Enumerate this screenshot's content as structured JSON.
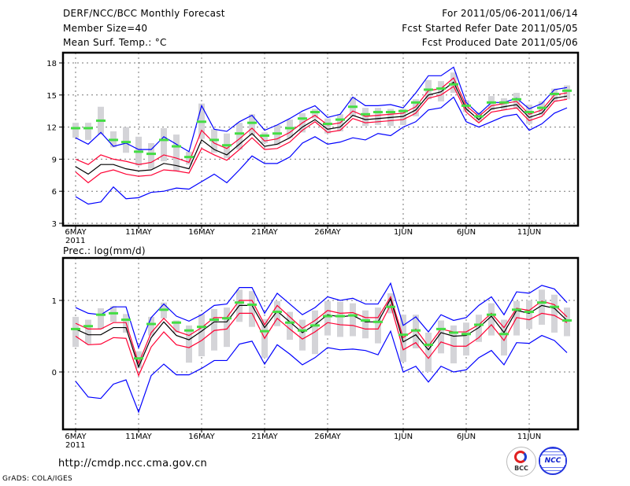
{
  "header": {
    "title": "DERF/NCC/BCC Monthly Forecast",
    "member_size": "Member Size=40",
    "period": "For 2011/05/06-2011/06/14",
    "started": "Fcst Started Refer Date 2011/05/05",
    "produced": "Fcst Produced Date 2011/05/06"
  },
  "footer": {
    "url": "http://cmdp.ncc.cma.gov.cn",
    "credit": "GrADS: COLA/IGES",
    "logo_bcc": "BCC",
    "logo_ncc": "NCC"
  },
  "colors": {
    "max_min": "#0000ff",
    "spread": "#ff0033",
    "mean": "#000000",
    "marker": "#44dd44",
    "bar": "#d4d4d8"
  },
  "chart_data": [
    {
      "type": "line",
      "title": "Mean Surf. Temp.: °C",
      "ylabel": "°C",
      "ylim": [
        3,
        19
      ],
      "yticks": [
        "3",
        "6",
        "9",
        "12",
        "15",
        "18"
      ],
      "ytick_values": [
        3,
        6,
        9,
        12,
        15,
        18
      ],
      "xticks": [
        {
          "day": 0,
          "label": "6MAY"
        },
        {
          "day": 5,
          "label": "11MAY"
        },
        {
          "day": 10,
          "label": "16MAY"
        },
        {
          "day": 15,
          "label": "21MAY"
        },
        {
          "day": 20,
          "label": "26MAY"
        },
        {
          "day": 26,
          "label": "1JUN"
        },
        {
          "day": 31,
          "label": "6JUN"
        },
        {
          "day": 36,
          "label": "11JUN"
        }
      ],
      "year_label": "2011",
      "grid": true,
      "days": 40,
      "series": [
        {
          "name": "max",
          "color": "#0000ff",
          "values": [
            11.0,
            10.4,
            11.5,
            10.2,
            10.5,
            9.9,
            9.9,
            11.1,
            10.4,
            9.7,
            14.0,
            11.8,
            11.6,
            12.5,
            13.1,
            11.7,
            12.2,
            12.8,
            13.5,
            14.0,
            12.9,
            13.2,
            14.8,
            14.0,
            14.0,
            14.1,
            13.8,
            15.2,
            16.8,
            16.8,
            17.6,
            14.3,
            13.2,
            14.3,
            14.3,
            14.7,
            13.7,
            14.2,
            15.5,
            15.7
          ]
        },
        {
          "name": "min",
          "color": "#0000ff",
          "values": [
            5.5,
            4.8,
            5.0,
            6.4,
            5.3,
            5.4,
            5.9,
            6.0,
            6.3,
            6.2,
            6.9,
            7.6,
            6.8,
            8.0,
            9.3,
            8.6,
            8.6,
            9.2,
            10.5,
            11.1,
            10.4,
            10.6,
            11.0,
            10.8,
            11.4,
            11.2,
            12.0,
            12.5,
            13.6,
            13.8,
            14.8,
            12.5,
            12.0,
            12.5,
            13.0,
            13.2,
            11.7,
            12.3,
            13.3,
            13.8
          ]
        },
        {
          "name": "upper",
          "color": "#ff0033",
          "values": [
            9.0,
            8.5,
            9.4,
            9.0,
            8.8,
            8.5,
            8.7,
            9.4,
            9.1,
            8.7,
            11.7,
            10.5,
            10.0,
            10.9,
            11.9,
            10.7,
            10.9,
            11.5,
            12.4,
            13.1,
            12.2,
            12.4,
            13.5,
            13.0,
            13.1,
            13.2,
            13.3,
            13.9,
            15.4,
            15.6,
            16.6,
            14.0,
            13.0,
            14.0,
            14.2,
            14.4,
            13.2,
            13.6,
            15.0,
            15.2
          ]
        },
        {
          "name": "lower",
          "color": "#ff0033",
          "values": [
            7.8,
            6.8,
            7.7,
            8.0,
            7.6,
            7.4,
            7.5,
            8.0,
            7.9,
            7.7,
            10.0,
            9.4,
            8.9,
            9.9,
            11.0,
            9.9,
            10.0,
            10.6,
            11.7,
            12.5,
            11.5,
            11.7,
            12.8,
            12.4,
            12.5,
            12.6,
            12.7,
            13.3,
            14.7,
            15.0,
            15.8,
            13.4,
            12.4,
            13.4,
            13.6,
            13.8,
            12.6,
            13.0,
            14.4,
            14.6
          ]
        },
        {
          "name": "mean",
          "color": "#000000",
          "values": [
            8.3,
            7.6,
            8.5,
            8.5,
            8.1,
            7.9,
            8.0,
            8.6,
            8.4,
            8.1,
            10.8,
            9.9,
            9.4,
            10.4,
            11.4,
            10.2,
            10.4,
            11.0,
            12.0,
            12.7,
            11.8,
            12.0,
            13.1,
            12.7,
            12.8,
            12.9,
            13.0,
            13.6,
            15.0,
            15.3,
            16.2,
            13.7,
            12.7,
            13.7,
            13.9,
            14.1,
            12.9,
            13.3,
            14.7,
            14.9
          ]
        }
      ],
      "markers": [
        11.9,
        11.9,
        12.6,
        10.8,
        10.6,
        9.7,
        9.5,
        10.8,
        10.2,
        9.2,
        12.5,
        10.8,
        10.3,
        11.4,
        12.4,
        11.2,
        11.4,
        11.9,
        12.8,
        13.4,
        12.3,
        12.7,
        13.9,
        13.2,
        13.4,
        13.4,
        13.5,
        14.3,
        15.5,
        15.6,
        16.0,
        14.0,
        13.0,
        14.3,
        14.3,
        14.6,
        13.4,
        13.8,
        15.1,
        15.4
      ],
      "bar_high": [
        12.4,
        12.4,
        13.9,
        11.6,
        12.0,
        11.1,
        10.5,
        11.9,
        11.3,
        9.7,
        14.2,
        11.8,
        11.4,
        12.4,
        13.2,
        11.5,
        12.2,
        12.7,
        13.3,
        13.7,
        12.8,
        13.2,
        14.8,
        13.8,
        13.8,
        13.7,
        13.7,
        14.6,
        16.4,
        16.3,
        17.1,
        14.5,
        13.4,
        14.9,
        14.7,
        15.2,
        14.1,
        14.4,
        15.6,
        15.9
      ],
      "bar_low": [
        11.0,
        10.8,
        11.3,
        10.1,
        9.6,
        8.4,
        8.1,
        8.8,
        7.9,
        8.5,
        10.9,
        9.6,
        9.1,
        9.9,
        11.2,
        10.5,
        10.3,
        11.0,
        11.5,
        12.8,
        11.4,
        11.6,
        13.0,
        12.1,
        12.2,
        12.1,
        12.2,
        13.0,
        14.6,
        14.4,
        15.2,
        13.4,
        12.5,
        13.6,
        13.6,
        13.7,
        12.3,
        13.1,
        14.4,
        14.6
      ]
    },
    {
      "type": "line",
      "title": "Prec.: log(mm/d)",
      "ylabel": "log(mm/d)",
      "ylim": [
        -0.8,
        1.6
      ],
      "yticks": [
        "0",
        "1"
      ],
      "ytick_values": [
        0,
        1
      ],
      "xticks": [
        {
          "day": 0,
          "label": "6MAY"
        },
        {
          "day": 5,
          "label": "11MAY"
        },
        {
          "day": 10,
          "label": "16MAY"
        },
        {
          "day": 15,
          "label": "21MAY"
        },
        {
          "day": 20,
          "label": "26MAY"
        },
        {
          "day": 26,
          "label": "1JUN"
        },
        {
          "day": 31,
          "label": "6JUN"
        },
        {
          "day": 36,
          "label": "11JUN"
        }
      ],
      "year_label": "2011",
      "grid": true,
      "days": 40,
      "series": [
        {
          "name": "max",
          "color": "#0000ff",
          "values": [
            0.9,
            0.82,
            0.8,
            0.91,
            0.91,
            0.34,
            0.76,
            0.95,
            0.78,
            0.71,
            0.8,
            0.93,
            0.95,
            1.18,
            1.18,
            0.82,
            1.1,
            0.95,
            0.8,
            0.9,
            1.05,
            1.0,
            1.03,
            0.95,
            0.95,
            1.24,
            0.65,
            0.77,
            0.56,
            0.8,
            0.72,
            0.76,
            0.93,
            1.05,
            0.8,
            1.12,
            1.1,
            1.21,
            1.16,
            0.97
          ]
        },
        {
          "name": "min",
          "color": "#0000ff",
          "values": [
            -0.13,
            -0.35,
            -0.37,
            -0.17,
            -0.11,
            -0.56,
            -0.05,
            0.11,
            -0.04,
            -0.04,
            0.05,
            0.16,
            0.16,
            0.39,
            0.43,
            0.11,
            0.38,
            0.25,
            0.1,
            0.2,
            0.34,
            0.31,
            0.32,
            0.3,
            0.24,
            0.57,
            0.0,
            0.08,
            -0.14,
            0.08,
            0.0,
            0.03,
            0.2,
            0.3,
            0.1,
            0.41,
            0.4,
            0.51,
            0.44,
            0.27
          ]
        },
        {
          "name": "upper",
          "color": "#ff0033",
          "values": [
            0.68,
            0.6,
            0.6,
            0.69,
            0.69,
            0.12,
            0.55,
            0.75,
            0.57,
            0.51,
            0.62,
            0.76,
            0.76,
            1.0,
            1.0,
            0.66,
            0.93,
            0.77,
            0.61,
            0.72,
            0.86,
            0.82,
            0.83,
            0.76,
            0.76,
            1.05,
            0.48,
            0.6,
            0.36,
            0.6,
            0.56,
            0.56,
            0.66,
            0.82,
            0.62,
            0.89,
            0.86,
            0.99,
            0.94,
            0.77
          ]
        },
        {
          "name": "lower",
          "color": "#ff0033",
          "values": [
            0.5,
            0.38,
            0.39,
            0.48,
            0.47,
            -0.05,
            0.35,
            0.56,
            0.38,
            0.34,
            0.44,
            0.58,
            0.6,
            0.82,
            0.82,
            0.47,
            0.75,
            0.6,
            0.46,
            0.56,
            0.69,
            0.66,
            0.65,
            0.6,
            0.6,
            0.94,
            0.31,
            0.41,
            0.19,
            0.42,
            0.36,
            0.36,
            0.48,
            0.66,
            0.44,
            0.76,
            0.73,
            0.82,
            0.79,
            0.69
          ]
        },
        {
          "name": "mean",
          "color": "#000000",
          "values": [
            0.6,
            0.52,
            0.52,
            0.62,
            0.62,
            0.07,
            0.48,
            0.7,
            0.51,
            0.45,
            0.57,
            0.7,
            0.7,
            0.93,
            0.93,
            0.62,
            0.85,
            0.7,
            0.55,
            0.66,
            0.8,
            0.77,
            0.79,
            0.7,
            0.7,
            1.02,
            0.42,
            0.52,
            0.31,
            0.55,
            0.5,
            0.51,
            0.62,
            0.78,
            0.55,
            0.86,
            0.82,
            0.93,
            0.89,
            0.72
          ]
        }
      ],
      "markers": [
        0.6,
        0.64,
        0.8,
        0.82,
        0.73,
        0.19,
        0.67,
        0.87,
        0.69,
        0.58,
        0.63,
        0.73,
        0.75,
        0.97,
        0.94,
        0.57,
        0.84,
        0.69,
        0.58,
        0.65,
        0.78,
        0.78,
        0.79,
        0.72,
        0.7,
        0.91,
        0.52,
        0.58,
        0.38,
        0.6,
        0.55,
        0.53,
        0.66,
        0.8,
        0.53,
        0.87,
        0.84,
        0.97,
        0.91,
        0.72
      ],
      "bar_high": [
        0.77,
        0.73,
        0.89,
        0.92,
        0.81,
        0.29,
        0.77,
        0.97,
        0.72,
        0.65,
        0.81,
        0.88,
        0.9,
        1.15,
        1.13,
        0.74,
        0.99,
        0.84,
        0.73,
        0.86,
        0.99,
        0.98,
        0.96,
        0.86,
        0.9,
        1.1,
        0.8,
        0.8,
        0.55,
        0.72,
        0.65,
        0.69,
        0.8,
        0.96,
        0.73,
        0.99,
        1.0,
        1.15,
        1.08,
        0.9
      ],
      "bar_low": [
        0.35,
        0.39,
        0.6,
        0.7,
        0.55,
        0.05,
        0.51,
        0.75,
        0.55,
        0.13,
        0.22,
        0.3,
        0.35,
        0.7,
        0.63,
        0.2,
        0.64,
        0.45,
        0.3,
        0.25,
        0.51,
        0.49,
        0.5,
        0.47,
        0.4,
        0.82,
        0.14,
        0.33,
        0.0,
        0.26,
        0.12,
        0.23,
        0.42,
        0.51,
        0.23,
        0.51,
        0.6,
        0.66,
        0.55,
        0.5
      ]
    }
  ]
}
